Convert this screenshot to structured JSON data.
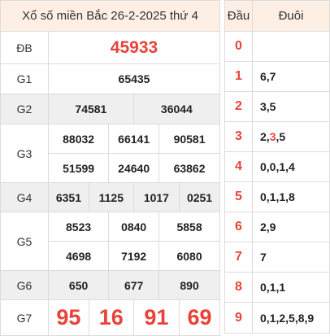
{
  "title": "Xổ số miền Bắc 26-2-2025 thứ 4",
  "prizes": {
    "db": {
      "label": "ĐB",
      "numbers": [
        "45933"
      ]
    },
    "g1": {
      "label": "G1",
      "numbers": [
        "65435"
      ]
    },
    "g2": {
      "label": "G2",
      "numbers": [
        "74581",
        "36044"
      ]
    },
    "g3": {
      "label": "G3",
      "numbers": [
        "88032",
        "66141",
        "90581",
        "51599",
        "24640",
        "63862"
      ]
    },
    "g4": {
      "label": "G4",
      "numbers": [
        "6351",
        "1125",
        "1017",
        "0251"
      ]
    },
    "g5": {
      "label": "G5",
      "numbers": [
        "8523",
        "0840",
        "5858",
        "4698",
        "7192",
        "6080"
      ]
    },
    "g6": {
      "label": "G6",
      "numbers": [
        "650",
        "677",
        "890"
      ]
    },
    "g7": {
      "label": "G7",
      "numbers": [
        "95",
        "16",
        "91",
        "69"
      ]
    }
  },
  "dauduoi": {
    "head_label": "Đầu",
    "tail_label": "Đuôi",
    "rows": [
      {
        "dau": "0",
        "duoi": ""
      },
      {
        "dau": "1",
        "duoi": "6,7"
      },
      {
        "dau": "2",
        "duoi": "3,5"
      },
      {
        "dau": "3",
        "duoi_pre": "2,",
        "duoi_hl": "3",
        "duoi_post": ",5"
      },
      {
        "dau": "4",
        "duoi": "0,0,1,4"
      },
      {
        "dau": "5",
        "duoi": "0,1,1,8"
      },
      {
        "dau": "6",
        "duoi": "2,9"
      },
      {
        "dau": "7",
        "duoi": "7"
      },
      {
        "dau": "8",
        "duoi": "0,1,1"
      },
      {
        "dau": "9",
        "duoi": "0,1,2,5,8,9"
      }
    ]
  },
  "colors": {
    "accent": "#e8423a",
    "header_bg": "#fdefe3",
    "stripe_bg": "#efefef"
  }
}
